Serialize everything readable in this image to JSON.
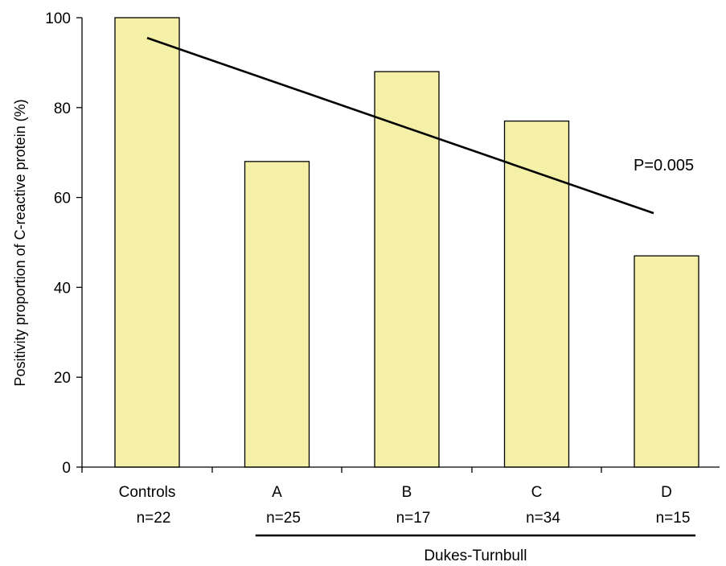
{
  "chart_data": {
    "type": "bar",
    "categories": [
      "Controls",
      "A",
      "B",
      "C",
      "D"
    ],
    "sample_sizes": [
      "n=22",
      "n=25",
      "n=17",
      "n=34",
      "n=15"
    ],
    "values": [
      100,
      68,
      88,
      77,
      47
    ],
    "ylabel": "Positivity proportion of C-reactive protein (%)",
    "ylim": [
      0,
      100
    ],
    "yticks": [
      0,
      20,
      40,
      60,
      80,
      100
    ],
    "ytick_labels": [
      "0",
      "20",
      "40",
      "60",
      "80",
      "100"
    ],
    "grid": false,
    "bar_color": "#f5f0a8",
    "bar_edge_color": "#000000",
    "trend_line": {
      "start": {
        "category": "Controls",
        "value": 95.5
      },
      "end": {
        "category": "D",
        "value": 56.5
      }
    },
    "annotation": "P=0.005",
    "group_label": "Dukes-Turnbull",
    "group_categories": [
      "A",
      "B",
      "C",
      "D"
    ]
  }
}
